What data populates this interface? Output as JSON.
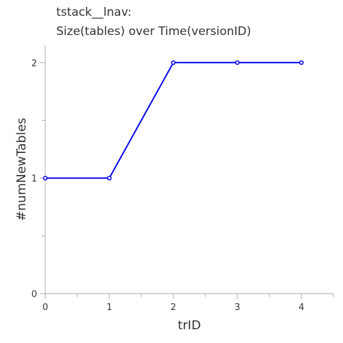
{
  "chart_data": {
    "type": "line",
    "title_lines": [
      "tstack__lnav:",
      "Size(tables) over Time(versionID)"
    ],
    "xlabel": "trID",
    "ylabel": "#numNewTables",
    "x": [
      0,
      1,
      2,
      3,
      4
    ],
    "series": [
      {
        "values": [
          1,
          1,
          2,
          2,
          2
        ],
        "color": "#0000ee"
      }
    ],
    "xlim": [
      0,
      4.5
    ],
    "ylim": [
      0,
      2.15
    ],
    "x_ticks": [
      0,
      1,
      2,
      3,
      4
    ],
    "y_ticks": [
      0,
      1,
      2
    ],
    "x_tick_labels": [
      "0",
      "1",
      "2",
      "3",
      "4"
    ],
    "y_tick_labels": [
      "0",
      "1",
      "2"
    ],
    "x_minor_step": 0.5,
    "y_minor_step": 0.5,
    "grid": false,
    "legend": "none"
  }
}
